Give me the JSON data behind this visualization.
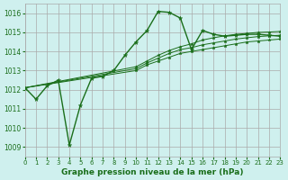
{
  "bg_color": "#cff0ee",
  "grid_color": "#aaaaaa",
  "line_color": "#1a6e1a",
  "marker_color": "#1a6e1a",
  "title": "Graphe pression niveau de la mer (hPa)",
  "xlim": [
    0,
    23
  ],
  "ylim": [
    1008.5,
    1016.5
  ],
  "yticks": [
    1009,
    1010,
    1011,
    1012,
    1013,
    1014,
    1015,
    1016
  ],
  "xticks": [
    0,
    1,
    2,
    3,
    4,
    5,
    6,
    7,
    8,
    9,
    10,
    11,
    12,
    13,
    14,
    15,
    16,
    17,
    18,
    19,
    20,
    21,
    22,
    23
  ],
  "series": [
    {
      "x": [
        0,
        1,
        2,
        3,
        4,
        5,
        6,
        7,
        8,
        9,
        10,
        11,
        12,
        13,
        14,
        15,
        16,
        17,
        18,
        19,
        20,
        21,
        22,
        23
      ],
      "y": [
        1012.1,
        1011.5,
        1012.2,
        1012.5,
        1009.1,
        1011.2,
        1012.6,
        1012.7,
        1013.0,
        1013.8,
        1014.5,
        1015.1,
        1016.1,
        1016.05,
        1015.75,
        1014.1,
        1015.1,
        1014.9,
        1014.8,
        1014.85,
        1014.9,
        1014.9,
        1014.85,
        1014.8
      ]
    },
    {
      "x": [
        0,
        10,
        11,
        12,
        13,
        14,
        15,
        16,
        17,
        18,
        19,
        20,
        21,
        22,
        23
      ],
      "y": [
        1012.1,
        1013.0,
        1013.3,
        1013.5,
        1013.7,
        1013.9,
        1014.0,
        1014.1,
        1014.2,
        1014.3,
        1014.4,
        1014.5,
        1014.55,
        1014.6,
        1014.65
      ]
    },
    {
      "x": [
        0,
        10,
        11,
        12,
        13,
        14,
        15,
        16,
        17,
        18,
        19,
        20,
        21,
        22,
        23
      ],
      "y": [
        1012.1,
        1013.1,
        1013.4,
        1013.65,
        1013.9,
        1014.1,
        1014.2,
        1014.35,
        1014.45,
        1014.55,
        1014.65,
        1014.72,
        1014.78,
        1014.82,
        1014.85
      ]
    },
    {
      "x": [
        0,
        10,
        11,
        12,
        13,
        14,
        15,
        16,
        17,
        18,
        19,
        20,
        21,
        22,
        23
      ],
      "y": [
        1012.1,
        1013.2,
        1013.5,
        1013.8,
        1014.05,
        1014.25,
        1014.4,
        1014.6,
        1014.72,
        1014.82,
        1014.9,
        1014.95,
        1015.0,
        1015.02,
        1015.05
      ]
    }
  ]
}
